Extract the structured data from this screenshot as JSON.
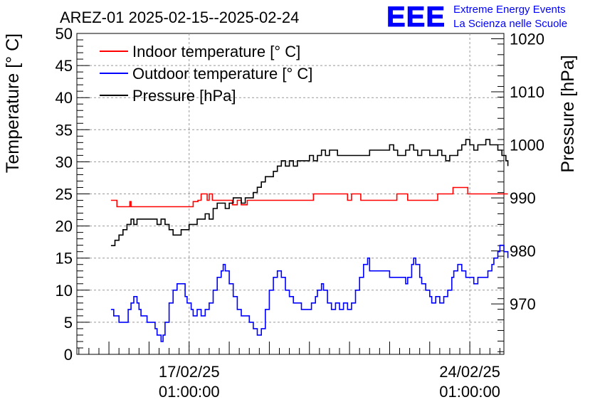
{
  "chart_data": {
    "type": "line",
    "title": "AREZ-01 2025-02-15--2025-02-24",
    "ylabel": "Temperature [° C]",
    "y2label": "Pressure [hPa]",
    "ylim": [
      0,
      50
    ],
    "y2lim": [
      960.5,
      1021
    ],
    "x_ticks": [
      {
        "label_line1": "17/02/25",
        "label_line2": "01:00:00",
        "day": 2
      },
      {
        "label_line1": "24/02/25",
        "label_line2": "01:00:00",
        "day": 9
      }
    ],
    "xlim_days": [
      -0.8,
      9.85
    ],
    "y_ticks": [
      0,
      5,
      10,
      15,
      20,
      25,
      30,
      35,
      40,
      45,
      50
    ],
    "y2_ticks": [
      970,
      980,
      990,
      1000,
      1010,
      1020
    ],
    "grid": true,
    "legend_position": "top-left",
    "series": [
      {
        "name": "Indoor temperature [° C]",
        "color": "#ff0000",
        "axis": "left",
        "points": [
          [
            0.05,
            24
          ],
          [
            0.12,
            24
          ],
          [
            0.2,
            23
          ],
          [
            0.45,
            23
          ],
          [
            0.52,
            23.8
          ],
          [
            0.55,
            23
          ],
          [
            1.3,
            23
          ],
          [
            2.08,
            23
          ],
          [
            2.1,
            23.8
          ],
          [
            2.22,
            24
          ],
          [
            2.3,
            25
          ],
          [
            2.45,
            24
          ],
          [
            2.5,
            25
          ],
          [
            2.58,
            24
          ],
          [
            2.75,
            24
          ],
          [
            3.0,
            24
          ],
          [
            3.08,
            23.3
          ],
          [
            3.2,
            24
          ],
          [
            3.3,
            23.3
          ],
          [
            3.45,
            24
          ],
          [
            3.6,
            24
          ],
          [
            3.7,
            24
          ],
          [
            4.5,
            24
          ],
          [
            5.0,
            24
          ],
          [
            5.1,
            25
          ],
          [
            5.95,
            24
          ],
          [
            6.05,
            25
          ],
          [
            6.22,
            25
          ],
          [
            6.28,
            24
          ],
          [
            6.3,
            24
          ],
          [
            6.65,
            24
          ],
          [
            7.1,
            24
          ],
          [
            7.18,
            25
          ],
          [
            7.38,
            25
          ],
          [
            7.45,
            24
          ],
          [
            7.75,
            24
          ],
          [
            7.85,
            24
          ],
          [
            8.1,
            24
          ],
          [
            8.2,
            25
          ],
          [
            8.5,
            25
          ],
          [
            8.58,
            26
          ],
          [
            8.9,
            26
          ],
          [
            8.95,
            25
          ],
          [
            9.95,
            25
          ]
        ]
      },
      {
        "name": "Outdoor temperature [° C]",
        "color": "#0000ff",
        "axis": "left",
        "points": [
          [
            0.05,
            7
          ],
          [
            0.1,
            7
          ],
          [
            0.12,
            6
          ],
          [
            0.22,
            6
          ],
          [
            0.25,
            5
          ],
          [
            0.42,
            5
          ],
          [
            0.48,
            7
          ],
          [
            0.55,
            8
          ],
          [
            0.62,
            9
          ],
          [
            0.7,
            8
          ],
          [
            0.75,
            7
          ],
          [
            0.8,
            6
          ],
          [
            0.9,
            6
          ],
          [
            0.95,
            5
          ],
          [
            1.1,
            5
          ],
          [
            1.15,
            4
          ],
          [
            1.2,
            3
          ],
          [
            1.3,
            2
          ],
          [
            1.35,
            3
          ],
          [
            1.4,
            5
          ],
          [
            1.5,
            8
          ],
          [
            1.6,
            10
          ],
          [
            1.7,
            11
          ],
          [
            1.8,
            11
          ],
          [
            1.9,
            9
          ],
          [
            1.95,
            8
          ],
          [
            2.05,
            7
          ],
          [
            2.1,
            6
          ],
          [
            2.2,
            7
          ],
          [
            2.3,
            6
          ],
          [
            2.4,
            7
          ],
          [
            2.5,
            8
          ],
          [
            2.6,
            10
          ],
          [
            2.7,
            12
          ],
          [
            2.8,
            13
          ],
          [
            2.85,
            14
          ],
          [
            2.9,
            13
          ],
          [
            3.0,
            11
          ],
          [
            3.1,
            9
          ],
          [
            3.2,
            7
          ],
          [
            3.3,
            6
          ],
          [
            3.4,
            6
          ],
          [
            3.5,
            5
          ],
          [
            3.6,
            4
          ],
          [
            3.7,
            3
          ],
          [
            3.8,
            4
          ],
          [
            3.9,
            7
          ],
          [
            4.0,
            10
          ],
          [
            4.1,
            12
          ],
          [
            4.2,
            13
          ],
          [
            4.3,
            12
          ],
          [
            4.4,
            10
          ],
          [
            4.5,
            9
          ],
          [
            4.6,
            8
          ],
          [
            4.7,
            8
          ],
          [
            4.8,
            7
          ],
          [
            4.95,
            7
          ],
          [
            5.05,
            8
          ],
          [
            5.15,
            9
          ],
          [
            5.2,
            10
          ],
          [
            5.3,
            11
          ],
          [
            5.35,
            10
          ],
          [
            5.45,
            8
          ],
          [
            5.55,
            7
          ],
          [
            5.65,
            8
          ],
          [
            5.75,
            7
          ],
          [
            5.85,
            8
          ],
          [
            5.95,
            7
          ],
          [
            6.05,
            8
          ],
          [
            6.15,
            10
          ],
          [
            6.25,
            12
          ],
          [
            6.35,
            14
          ],
          [
            6.45,
            15
          ],
          [
            6.5,
            13
          ],
          [
            6.6,
            13
          ],
          [
            7.0,
            12
          ],
          [
            7.4,
            11
          ],
          [
            7.45,
            12
          ],
          [
            7.55,
            14
          ],
          [
            7.6,
            15
          ],
          [
            7.65,
            14
          ],
          [
            7.75,
            12
          ],
          [
            7.8,
            11
          ],
          [
            7.9,
            10
          ],
          [
            8.0,
            9
          ],
          [
            8.05,
            8
          ],
          [
            8.15,
            9
          ],
          [
            8.25,
            8
          ],
          [
            8.35,
            9
          ],
          [
            8.45,
            10
          ],
          [
            8.55,
            12
          ],
          [
            8.6,
            13
          ],
          [
            8.7,
            14
          ],
          [
            8.8,
            13
          ],
          [
            8.9,
            12
          ],
          [
            9.0,
            12
          ],
          [
            9.1,
            11
          ],
          [
            9.2,
            12
          ],
          [
            9.3,
            12
          ],
          [
            9.45,
            13
          ],
          [
            9.55,
            14
          ],
          [
            9.6,
            15
          ],
          [
            9.7,
            16
          ],
          [
            9.75,
            17
          ],
          [
            9.85,
            16
          ],
          [
            9.95,
            15
          ]
        ]
      },
      {
        "name": "Pressure [hPa]",
        "color": "#000000",
        "axis": "right",
        "points": [
          [
            0.05,
            981
          ],
          [
            0.15,
            982
          ],
          [
            0.25,
            983
          ],
          [
            0.35,
            984
          ],
          [
            0.45,
            985
          ],
          [
            0.55,
            986
          ],
          [
            0.62,
            985
          ],
          [
            0.7,
            986
          ],
          [
            0.9,
            986
          ],
          [
            1.1,
            986
          ],
          [
            1.2,
            985
          ],
          [
            1.3,
            986
          ],
          [
            1.4,
            985
          ],
          [
            1.5,
            984
          ],
          [
            1.6,
            983
          ],
          [
            1.7,
            983
          ],
          [
            1.8,
            984
          ],
          [
            1.9,
            984
          ],
          [
            2.0,
            985
          ],
          [
            2.1,
            985
          ],
          [
            2.2,
            986
          ],
          [
            2.3,
            986
          ],
          [
            2.4,
            987
          ],
          [
            2.5,
            986
          ],
          [
            2.6,
            988
          ],
          [
            2.7,
            989
          ],
          [
            2.8,
            989
          ],
          [
            2.9,
            988
          ],
          [
            3.0,
            989
          ],
          [
            3.1,
            990
          ],
          [
            3.2,
            990
          ],
          [
            3.3,
            989
          ],
          [
            3.4,
            990
          ],
          [
            3.5,
            990
          ],
          [
            3.6,
            991
          ],
          [
            3.7,
            992
          ],
          [
            3.8,
            993
          ],
          [
            3.9,
            994
          ],
          [
            4.0,
            994
          ],
          [
            4.1,
            995
          ],
          [
            4.2,
            996
          ],
          [
            4.3,
            997
          ],
          [
            4.4,
            996
          ],
          [
            4.5,
            997
          ],
          [
            4.6,
            996
          ],
          [
            4.7,
            997
          ],
          [
            4.8,
            997
          ],
          [
            4.9,
            997
          ],
          [
            5.0,
            998
          ],
          [
            5.1,
            997
          ],
          [
            5.2,
            998
          ],
          [
            5.3,
            999
          ],
          [
            5.4,
            998
          ],
          [
            5.5,
            999
          ],
          [
            5.6,
            999
          ],
          [
            5.7,
            998
          ],
          [
            6.5,
            999
          ],
          [
            7.0,
            1000
          ],
          [
            7.1,
            999
          ],
          [
            7.2,
            998
          ],
          [
            7.3,
            998
          ],
          [
            7.4,
            999
          ],
          [
            7.5,
            1000
          ],
          [
            7.6,
            999
          ],
          [
            7.7,
            998
          ],
          [
            7.8,
            999
          ],
          [
            7.9,
            999
          ],
          [
            8.0,
            998
          ],
          [
            8.1,
            998
          ],
          [
            8.2,
            999
          ],
          [
            8.3,
            998
          ],
          [
            8.4,
            997
          ],
          [
            8.5,
            998
          ],
          [
            8.6,
            998
          ],
          [
            8.7,
            999
          ],
          [
            8.8,
            1000
          ],
          [
            8.9,
            1001
          ],
          [
            9.0,
            1000
          ],
          [
            9.1,
            999
          ],
          [
            9.2,
            1000
          ],
          [
            9.3,
            1000
          ],
          [
            9.4,
            1001
          ],
          [
            9.5,
            1000
          ],
          [
            9.6,
            1000
          ],
          [
            9.7,
            999
          ],
          [
            9.8,
            998
          ],
          [
            9.9,
            997
          ],
          [
            9.95,
            996
          ]
        ]
      }
    ]
  },
  "branding": {
    "logo_text": "EEE",
    "line1": "Extreme Energy Events",
    "line2": "La Scienza nelle Scuole",
    "color": "#0000ff"
  }
}
